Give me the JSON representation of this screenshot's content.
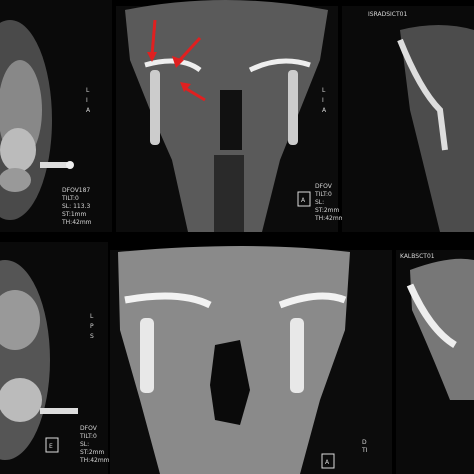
{
  "panels": [
    {
      "labels": [
        "DFOV187",
        "TILT:0",
        "SL: 113.3",
        "ST:1mm",
        "TH:42mm",
        "L",
        "I",
        "A"
      ]
    },
    {
      "labels": [
        "DFOV",
        "TILT:0",
        "SL:",
        "ST:2mm",
        "TH:42mm",
        "A",
        "L",
        "I",
        "A"
      ]
    },
    {
      "labels": [
        "ISRADSICT01"
      ]
    },
    {
      "labels": [
        "DFOV",
        "TILT:0",
        "SL:",
        "ST:2mm",
        "TH:42mm",
        "E",
        "L",
        "P",
        "S"
      ]
    },
    {
      "labels": [
        "D",
        "TI",
        "A"
      ]
    },
    {
      "labels": [
        "KALBSCT01"
      ]
    }
  ]
}
